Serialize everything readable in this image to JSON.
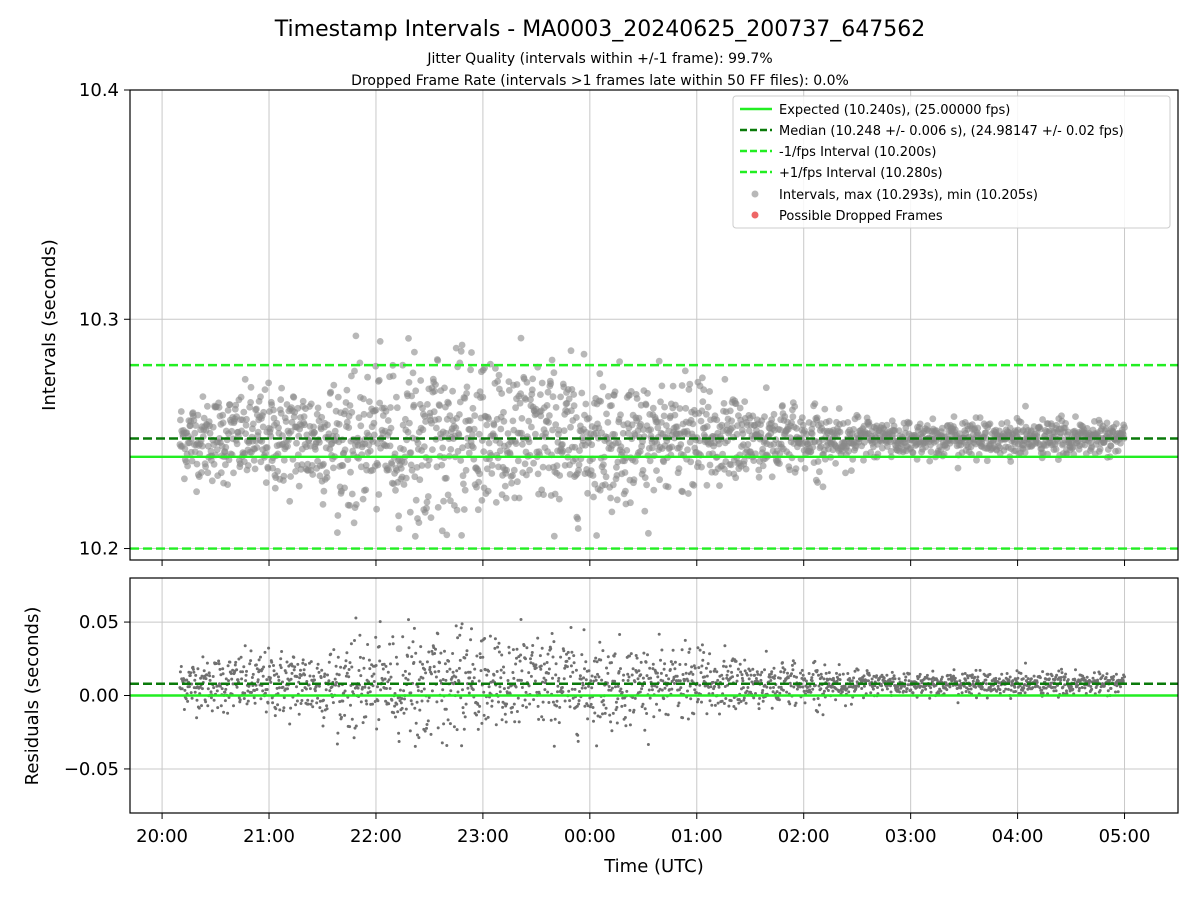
{
  "chart_data": [
    {
      "panel": "top",
      "type": "scatter",
      "title": "Timestamp Intervals - MA0003_20240625_200737_647562",
      "subtitle_lines": [
        "Jitter Quality (intervals within +/-1 frame): 99.7%",
        "Dropped Frame Rate (intervals >1 frames late within 50 FF files): 0.0%"
      ],
      "xlabel": "",
      "ylabel": "Intervals (seconds)",
      "x_range_utc": [
        "19:42",
        "05:30"
      ],
      "ylim": [
        10.195,
        10.4
      ],
      "yticks": [
        10.2,
        10.3,
        10.4
      ],
      "ytick_labels": [
        "10.2",
        "10.3",
        "10.4"
      ],
      "grid": true,
      "legend_position": "top-right",
      "hlines": [
        {
          "label": "Expected (10.240s), (25.00000 fps)",
          "y": 10.24,
          "style": "solid",
          "color": "#22ee22"
        },
        {
          "label": "Median (10.248 +/- 0.006 s), (24.98147 +/- 0.02 fps)",
          "y": 10.248,
          "style": "dashed",
          "color": "#0a7a0a"
        },
        {
          "label": "-1/fps Interval (10.200s)",
          "y": 10.2,
          "style": "dashed",
          "color": "#22ee22"
        },
        {
          "label": "+1/fps Interval (10.280s)",
          "y": 10.28,
          "style": "dashed",
          "color": "#22ee22"
        }
      ],
      "scatter_series": [
        {
          "label": "Intervals, max (10.293s), min (10.205s)",
          "color": "#888888",
          "max": 10.293,
          "min": 10.205,
          "x_start": "20:10",
          "x_end": "05:00",
          "count": 2100
        },
        {
          "label": "Possible Dropped Frames",
          "color": "#ee6666",
          "count": 0
        }
      ]
    },
    {
      "panel": "bottom",
      "type": "scatter",
      "title": "",
      "xlabel": "Time (UTC)",
      "ylabel": "Residuals (seconds)",
      "x_range_utc": [
        "19:42",
        "05:30"
      ],
      "xticks": [
        "20:00",
        "21:00",
        "22:00",
        "23:00",
        "00:00",
        "01:00",
        "02:00",
        "03:00",
        "04:00",
        "05:00"
      ],
      "ylim": [
        -0.08,
        0.08
      ],
      "yticks": [
        -0.05,
        0.0,
        0.05
      ],
      "ytick_labels": [
        "−0.05",
        "0.00",
        "0.05"
      ],
      "grid": true,
      "hlines": [
        {
          "y": 0.0,
          "style": "solid",
          "color": "#22ee22"
        },
        {
          "y": 0.008,
          "style": "dashed",
          "color": "#0a7a0a"
        }
      ],
      "scatter_series": [
        {
          "color": "#707070",
          "max": 0.053,
          "min": -0.035,
          "count": 2100
        }
      ]
    }
  ]
}
